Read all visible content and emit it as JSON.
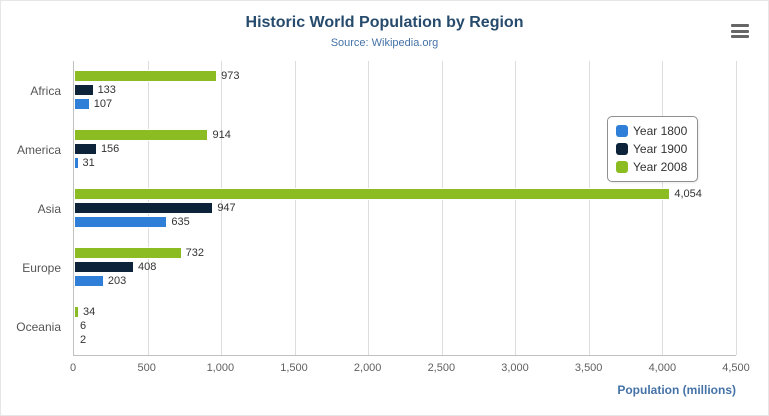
{
  "header": {
    "title": "Historic World Population by Region",
    "subtitle": "Source: Wikipedia.org"
  },
  "menu": {
    "icon": "hamburger-icon"
  },
  "chart_data": {
    "type": "bar",
    "orientation": "horizontal",
    "title": "Historic World Population by Region",
    "subtitle": "Source: Wikipedia.org",
    "categories": [
      "Africa",
      "America",
      "Asia",
      "Europe",
      "Oceania"
    ],
    "series": [
      {
        "name": "Year 1800",
        "color": "#2f7ed8",
        "values": [
          107,
          31,
          635,
          203,
          2
        ]
      },
      {
        "name": "Year 1900",
        "color": "#0d233a",
        "values": [
          133,
          156,
          947,
          408,
          6
        ]
      },
      {
        "name": "Year 2008",
        "color": "#8bbc21",
        "values": [
          973,
          914,
          4054,
          732,
          34
        ]
      }
    ],
    "stack_order_top_to_bottom": [
      "Year 2008",
      "Year 1900",
      "Year 1800"
    ],
    "xlabel": "Population (millions)",
    "ylabel": "",
    "xlim": [
      0,
      4500
    ],
    "xticks": [
      "0",
      "500",
      "1,000",
      "1,500",
      "2,000",
      "2,500",
      "3,000",
      "3,500",
      "4,000",
      "4,500"
    ],
    "grid": true,
    "legend_position": "right",
    "data_labels": true
  }
}
